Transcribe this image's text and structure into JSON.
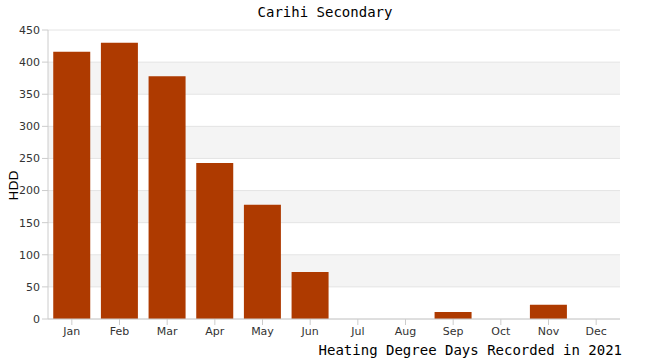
{
  "chart_data": {
    "type": "bar",
    "title": "Carihi Secondary",
    "x_label": "Heating Degree Days Recorded in 2021",
    "y_label": "HDD",
    "categories": [
      "Jan",
      "Feb",
      "Mar",
      "Apr",
      "May",
      "Jun",
      "Jul",
      "Aug",
      "Sep",
      "Oct",
      "Nov",
      "Dec"
    ],
    "values": [
      416,
      430,
      378,
      243,
      178,
      73,
      0,
      0,
      11,
      0,
      22,
      0
    ],
    "color": "#ae3a00",
    "ylim": [
      0,
      450
    ],
    "yticks": [
      0,
      50,
      100,
      150,
      200,
      250,
      300,
      350,
      400,
      450
    ],
    "grid": true
  }
}
